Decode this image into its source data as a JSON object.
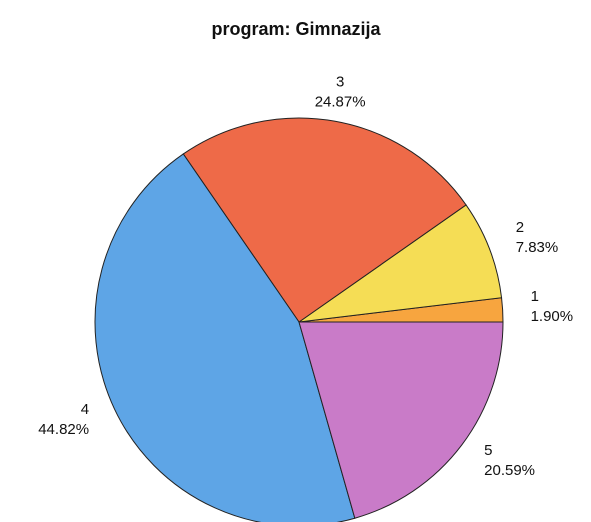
{
  "chart_data": {
    "type": "pie",
    "title": "program: Gimnazija",
    "categories": [
      "1",
      "2",
      "3",
      "4",
      "5"
    ],
    "values": [
      1.9,
      7.83,
      24.87,
      44.82,
      20.59
    ],
    "value_labels": [
      "1.90%",
      "7.83%",
      "24.87%",
      "44.82%",
      "20.59%"
    ],
    "colors": [
      "#f7a53f",
      "#f5dd55",
      "#ee6a48",
      "#5ea5e6",
      "#c97bc8"
    ]
  }
}
